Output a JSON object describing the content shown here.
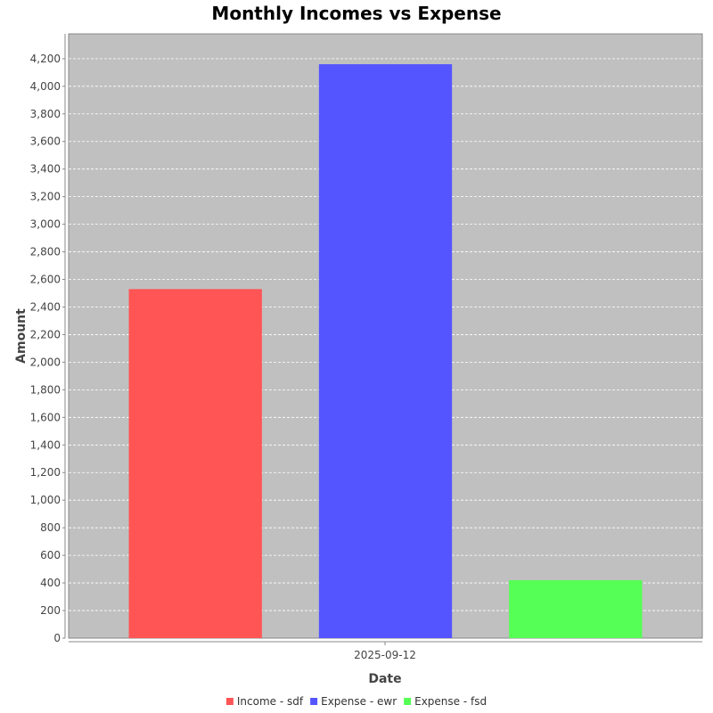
{
  "chart_data": {
    "type": "bar",
    "title": "Monthly Incomes vs Expense",
    "xlabel": "Date",
    "ylabel": "Amount",
    "categories": [
      "2025-09-12"
    ],
    "series": [
      {
        "name": "Income - sdf",
        "values": [
          2530
        ],
        "color": "#ff5555"
      },
      {
        "name": "Expense - ewr",
        "values": [
          4160
        ],
        "color": "#5555ff"
      },
      {
        "name": "Expense - fsd",
        "values": [
          420
        ],
        "color": "#55ff55"
      }
    ],
    "ylim": [
      0,
      4380
    ],
    "yticks": [
      0,
      200,
      400,
      600,
      800,
      1000,
      1200,
      1400,
      1600,
      1800,
      2000,
      2200,
      2400,
      2600,
      2800,
      3000,
      3200,
      3400,
      3600,
      3800,
      4000,
      4200
    ],
    "ytick_labels": [
      "0",
      "200",
      "400",
      "600",
      "800",
      "1,000",
      "1,200",
      "1,400",
      "1,600",
      "1,800",
      "2,000",
      "2,200",
      "2,400",
      "2,600",
      "2,800",
      "3,000",
      "3,200",
      "3,400",
      "3,600",
      "3,800",
      "4,000",
      "4,200"
    ],
    "grid": true,
    "legend_position": "bottom",
    "plot_background": "#c0c0c0"
  }
}
